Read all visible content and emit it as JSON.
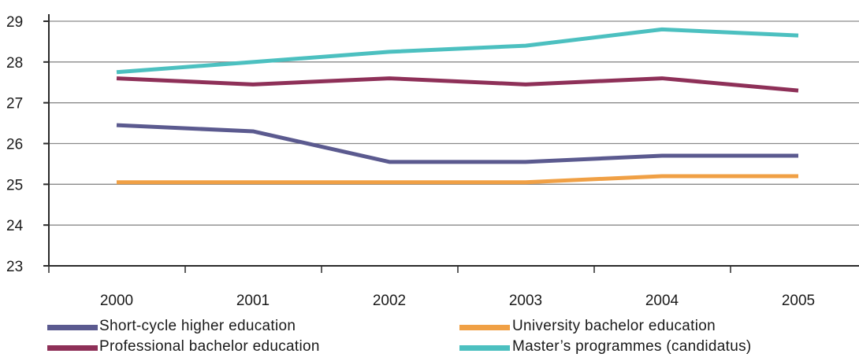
{
  "chart_data": {
    "type": "line",
    "title": "",
    "xlabel": "",
    "ylabel": "",
    "categories": [
      "2000",
      "2001",
      "2002",
      "2003",
      "2004",
      "2005"
    ],
    "ylim": [
      23,
      29
    ],
    "yticks": [
      23,
      24,
      25,
      26,
      27,
      28,
      29
    ],
    "grid": true,
    "legend_position": "bottom",
    "series": [
      {
        "name": "Short-cycle higher education",
        "color": "#5b5a8f",
        "values": [
          26.45,
          26.3,
          25.55,
          25.55,
          25.7,
          25.7
        ]
      },
      {
        "name": "University bachelor education",
        "color": "#f0a045",
        "values": [
          25.05,
          25.05,
          25.05,
          25.05,
          25.2,
          25.2
        ]
      },
      {
        "name": "Professional bachelor education",
        "color": "#8e3058",
        "values": [
          27.6,
          27.45,
          27.6,
          27.45,
          27.6,
          27.3
        ]
      },
      {
        "name": "Master’s programmes (candidatus)",
        "color": "#4cc0c0",
        "values": [
          27.75,
          28.0,
          28.25,
          28.4,
          28.8,
          28.65
        ]
      }
    ]
  }
}
